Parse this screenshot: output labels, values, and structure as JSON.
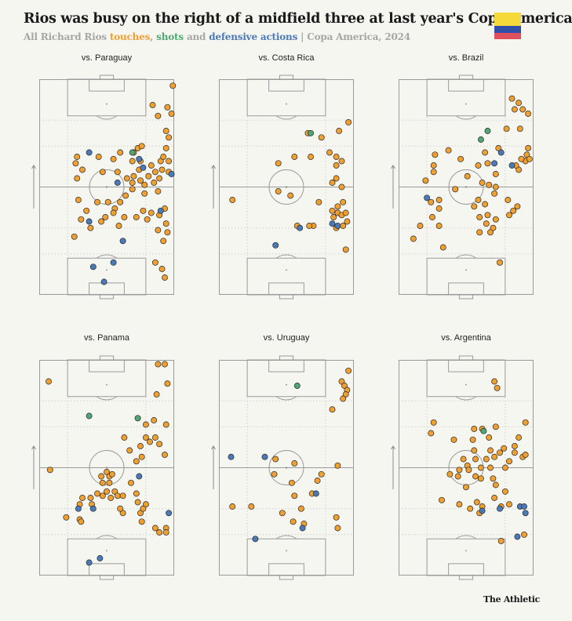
{
  "header": {
    "title": "Rios was busy on the right of a midfield three at last year's Copa America",
    "subtitle_prefix": "All Richard Rios ",
    "subtitle_touches": "touches",
    "subtitle_sep1": ", ",
    "subtitle_shots": "shots",
    "subtitle_and": " and ",
    "subtitle_defensive": "defensive actions",
    "subtitle_suffix": " | Copa America, 2024"
  },
  "branding": {
    "label": "The Athletic"
  },
  "flag": {
    "colors": [
      "#f5d83a",
      "#2f4fa8",
      "#e0505c"
    ]
  },
  "colors": {
    "touch": "#f0a030",
    "shot": "#4fa874",
    "defensive": "#4a7ab8"
  },
  "chart_data": [
    {
      "type": "scatter",
      "title": "vs. Paraguay",
      "x_axis": "pitch width (0 = left touchline, 1 = right touchline)",
      "y_axis": "pitch length (0 = own goal line, 1 = opponent goal line)",
      "touches": [
        [
          0.99,
          0.97
        ],
        [
          0.84,
          0.88
        ],
        [
          0.95,
          0.87
        ],
        [
          0.88,
          0.83
        ],
        [
          0.94,
          0.76
        ],
        [
          0.96,
          0.73
        ],
        [
          0.98,
          0.84
        ],
        [
          0.7,
          0.66
        ],
        [
          0.73,
          0.68
        ],
        [
          0.76,
          0.69
        ],
        [
          0.69,
          0.62
        ],
        [
          0.75,
          0.62
        ],
        [
          0.83,
          0.6
        ],
        [
          0.9,
          0.62
        ],
        [
          0.94,
          0.68
        ],
        [
          0.92,
          0.64
        ],
        [
          0.96,
          0.62
        ],
        [
          0.28,
          0.64
        ],
        [
          0.44,
          0.64
        ],
        [
          0.55,
          0.63
        ],
        [
          0.6,
          0.66
        ],
        [
          0.74,
          0.58
        ],
        [
          0.81,
          0.55
        ],
        [
          0.86,
          0.57
        ],
        [
          0.7,
          0.55
        ],
        [
          0.75,
          0.53
        ],
        [
          0.69,
          0.52
        ],
        [
          0.78,
          0.51
        ],
        [
          0.85,
          0.52
        ],
        [
          0.89,
          0.54
        ],
        [
          0.88,
          0.48
        ],
        [
          0.91,
          0.58
        ],
        [
          0.96,
          0.57
        ],
        [
          0.27,
          0.61
        ],
        [
          0.32,
          0.58
        ],
        [
          0.28,
          0.54
        ],
        [
          0.47,
          0.57
        ],
        [
          0.58,
          0.57
        ],
        [
          0.65,
          0.54
        ],
        [
          0.69,
          0.49
        ],
        [
          0.78,
          0.47
        ],
        [
          0.64,
          0.46
        ],
        [
          0.6,
          0.43
        ],
        [
          0.56,
          0.4
        ],
        [
          0.51,
          0.43
        ],
        [
          0.43,
          0.43
        ],
        [
          0.29,
          0.44
        ],
        [
          0.35,
          0.39
        ],
        [
          0.31,
          0.35
        ],
        [
          0.63,
          0.36
        ],
        [
          0.72,
          0.36
        ],
        [
          0.8,
          0.35
        ],
        [
          0.89,
          0.37
        ],
        [
          0.93,
          0.4
        ],
        [
          0.55,
          0.38
        ],
        [
          0.49,
          0.36
        ],
        [
          0.46,
          0.34
        ],
        [
          0.59,
          0.32
        ],
        [
          0.83,
          0.38
        ],
        [
          0.94,
          0.33
        ],
        [
          0.95,
          0.29
        ],
        [
          0.92,
          0.25
        ],
        [
          0.26,
          0.27
        ],
        [
          0.38,
          0.31
        ],
        [
          0.86,
          0.15
        ],
        [
          0.91,
          0.12
        ],
        [
          0.93,
          0.08
        ],
        [
          0.88,
          0.3
        ],
        [
          0.77,
          0.39
        ]
      ],
      "shots": [
        [
          0.69,
          0.66
        ]
      ],
      "defensive": [
        [
          0.37,
          0.66
        ],
        [
          0.74,
          0.63
        ],
        [
          0.77,
          0.59
        ],
        [
          0.98,
          0.56
        ],
        [
          0.58,
          0.52
        ],
        [
          0.37,
          0.34
        ],
        [
          0.62,
          0.25
        ],
        [
          0.4,
          0.13
        ],
        [
          0.55,
          0.15
        ],
        [
          0.48,
          0.06
        ],
        [
          0.9,
          0.39
        ]
      ]
    },
    {
      "type": "scatter",
      "title": "vs. Costa Rica",
      "x_axis": "pitch width (0 = left touchline, 1 = right touchline)",
      "y_axis": "pitch length (0 = own goal line, 1 = opponent goal line)",
      "touches": [
        [
          0.96,
          0.8
        ],
        [
          0.89,
          0.76
        ],
        [
          0.76,
          0.73
        ],
        [
          0.66,
          0.75
        ],
        [
          0.82,
          0.66
        ],
        [
          0.68,
          0.64
        ],
        [
          0.87,
          0.64
        ],
        [
          0.91,
          0.62
        ],
        [
          0.87,
          0.6
        ],
        [
          0.44,
          0.61
        ],
        [
          0.87,
          0.54
        ],
        [
          0.84,
          0.52
        ],
        [
          0.91,
          0.5
        ],
        [
          0.44,
          0.48
        ],
        [
          0.53,
          0.46
        ],
        [
          0.56,
          0.64
        ],
        [
          0.1,
          0.44
        ],
        [
          0.74,
          0.43
        ],
        [
          0.88,
          0.41
        ],
        [
          0.92,
          0.43
        ],
        [
          0.84,
          0.39
        ],
        [
          0.88,
          0.38
        ],
        [
          0.91,
          0.37
        ],
        [
          0.94,
          0.38
        ],
        [
          0.85,
          0.36
        ],
        [
          0.7,
          0.32
        ],
        [
          0.67,
          0.32
        ],
        [
          0.87,
          0.31
        ],
        [
          0.92,
          0.32
        ],
        [
          0.95,
          0.34
        ],
        [
          0.94,
          0.21
        ],
        [
          0.58,
          0.32
        ]
      ],
      "shots": [
        [
          0.68,
          0.75
        ]
      ],
      "defensive": [
        [
          0.84,
          0.33
        ],
        [
          0.88,
          0.32
        ],
        [
          0.42,
          0.23
        ],
        [
          0.6,
          0.31
        ]
      ]
    },
    {
      "type": "scatter",
      "title": "vs. Brazil",
      "x_axis": "pitch width (0 = left touchline, 1 = right touchline)",
      "y_axis": "pitch length (0 = own goal line, 1 = opponent goal line)",
      "touches": [
        [
          0.84,
          0.91
        ],
        [
          0.89,
          0.89
        ],
        [
          0.86,
          0.86
        ],
        [
          0.92,
          0.86
        ],
        [
          0.96,
          0.84
        ],
        [
          0.8,
          0.77
        ],
        [
          0.9,
          0.77
        ],
        [
          0.74,
          0.68
        ],
        [
          0.94,
          0.62
        ],
        [
          0.95,
          0.65
        ],
        [
          0.91,
          0.63
        ],
        [
          0.89,
          0.58
        ],
        [
          0.87,
          0.6
        ],
        [
          0.96,
          0.68
        ],
        [
          0.97,
          0.63
        ],
        [
          0.37,
          0.67
        ],
        [
          0.27,
          0.65
        ],
        [
          0.26,
          0.6
        ],
        [
          0.46,
          0.63
        ],
        [
          0.64,
          0.66
        ],
        [
          0.66,
          0.61
        ],
        [
          0.51,
          0.55
        ],
        [
          0.72,
          0.56
        ],
        [
          0.59,
          0.6
        ],
        [
          0.26,
          0.57
        ],
        [
          0.2,
          0.53
        ],
        [
          0.42,
          0.49
        ],
        [
          0.62,
          0.52
        ],
        [
          0.67,
          0.51
        ],
        [
          0.72,
          0.5
        ],
        [
          0.71,
          0.47
        ],
        [
          0.59,
          0.44
        ],
        [
          0.3,
          0.44
        ],
        [
          0.24,
          0.43
        ],
        [
          0.3,
          0.4
        ],
        [
          0.56,
          0.41
        ],
        [
          0.64,
          0.42
        ],
        [
          0.81,
          0.44
        ],
        [
          0.82,
          0.37
        ],
        [
          0.85,
          0.39
        ],
        [
          0.88,
          0.41
        ],
        [
          0.66,
          0.37
        ],
        [
          0.25,
          0.36
        ],
        [
          0.3,
          0.32
        ],
        [
          0.16,
          0.32
        ],
        [
          0.72,
          0.35
        ],
        [
          0.65,
          0.33
        ],
        [
          0.6,
          0.36
        ],
        [
          0.7,
          0.31
        ],
        [
          0.68,
          0.29
        ],
        [
          0.6,
          0.29
        ],
        [
          0.11,
          0.26
        ],
        [
          0.33,
          0.22
        ],
        [
          0.75,
          0.15
        ]
      ],
      "shots": [
        [
          0.66,
          0.76
        ],
        [
          0.61,
          0.72
        ]
      ],
      "defensive": [
        [
          0.76,
          0.66
        ],
        [
          0.71,
          0.61
        ],
        [
          0.84,
          0.6
        ],
        [
          0.21,
          0.45
        ]
      ]
    },
    {
      "type": "scatter",
      "title": "vs. Panama",
      "x_axis": "pitch width (0 = left touchline, 1 = right touchline)",
      "y_axis": "pitch length (0 = own goal line, 1 = opponent goal line)",
      "touches": [
        [
          0.88,
          0.98
        ],
        [
          0.93,
          0.98
        ],
        [
          0.95,
          0.89
        ],
        [
          0.87,
          0.84
        ],
        [
          0.07,
          0.9
        ],
        [
          0.85,
          0.72
        ],
        [
          0.94,
          0.7
        ],
        [
          0.79,
          0.7
        ],
        [
          0.79,
          0.64
        ],
        [
          0.86,
          0.64
        ],
        [
          0.82,
          0.62
        ],
        [
          0.89,
          0.61
        ],
        [
          0.75,
          0.6
        ],
        [
          0.63,
          0.64
        ],
        [
          0.67,
          0.58
        ],
        [
          0.76,
          0.55
        ],
        [
          0.93,
          0.56
        ],
        [
          0.72,
          0.53
        ],
        [
          0.08,
          0.49
        ],
        [
          0.5,
          0.48
        ],
        [
          0.52,
          0.46
        ],
        [
          0.54,
          0.47
        ],
        [
          0.46,
          0.46
        ],
        [
          0.52,
          0.43
        ],
        [
          0.47,
          0.43
        ],
        [
          0.5,
          0.39
        ],
        [
          0.56,
          0.39
        ],
        [
          0.43,
          0.38
        ],
        [
          0.47,
          0.37
        ],
        [
          0.53,
          0.36
        ],
        [
          0.58,
          0.37
        ],
        [
          0.68,
          0.43
        ],
        [
          0.72,
          0.38
        ],
        [
          0.73,
          0.34
        ],
        [
          0.62,
          0.37
        ],
        [
          0.38,
          0.36
        ],
        [
          0.32,
          0.36
        ],
        [
          0.39,
          0.33
        ],
        [
          0.3,
          0.33
        ],
        [
          0.62,
          0.29
        ],
        [
          0.75,
          0.29
        ],
        [
          0.79,
          0.33
        ],
        [
          0.77,
          0.31
        ],
        [
          0.76,
          0.25
        ],
        [
          0.2,
          0.27
        ],
        [
          0.3,
          0.26
        ],
        [
          0.31,
          0.25
        ],
        [
          0.86,
          0.22
        ],
        [
          0.89,
          0.2
        ],
        [
          0.94,
          0.22
        ],
        [
          0.94,
          0.2
        ],
        [
          0.6,
          0.31
        ]
      ],
      "shots": [
        [
          0.37,
          0.74
        ],
        [
          0.73,
          0.73
        ]
      ],
      "defensive": [
        [
          0.74,
          0.46
        ],
        [
          0.29,
          0.31
        ],
        [
          0.4,
          0.31
        ],
        [
          0.96,
          0.29
        ],
        [
          0.45,
          0.08
        ],
        [
          0.37,
          0.06
        ]
      ]
    },
    {
      "type": "scatter",
      "title": "vs. Uruguay",
      "x_axis": "pitch width (0 = left touchline, 1 = right touchline)",
      "y_axis": "pitch length (0 = own goal line, 1 = opponent goal line)",
      "touches": [
        [
          0.96,
          0.95
        ],
        [
          0.91,
          0.9
        ],
        [
          0.93,
          0.88
        ],
        [
          0.95,
          0.86
        ],
        [
          0.94,
          0.84
        ],
        [
          0.92,
          0.82
        ],
        [
          0.84,
          0.77
        ],
        [
          0.56,
          0.52
        ],
        [
          0.88,
          0.51
        ],
        [
          0.41,
          0.47
        ],
        [
          0.76,
          0.47
        ],
        [
          0.54,
          0.43
        ],
        [
          0.73,
          0.44
        ],
        [
          0.56,
          0.37
        ],
        [
          0.69,
          0.38
        ],
        [
          0.1,
          0.32
        ],
        [
          0.24,
          0.32
        ],
        [
          0.47,
          0.29
        ],
        [
          0.61,
          0.31
        ],
        [
          0.55,
          0.25
        ],
        [
          0.63,
          0.24
        ],
        [
          0.87,
          0.27
        ],
        [
          0.88,
          0.22
        ],
        [
          0.42,
          0.54
        ]
      ],
      "shots": [
        [
          0.58,
          0.88
        ]
      ],
      "defensive": [
        [
          0.09,
          0.55
        ],
        [
          0.34,
          0.55
        ],
        [
          0.72,
          0.38
        ],
        [
          0.62,
          0.22
        ],
        [
          0.27,
          0.17
        ]
      ]
    },
    {
      "type": "scatter",
      "title": "vs. Argentina",
      "x_axis": "pitch width (0 = left touchline, 1 = right touchline)",
      "y_axis": "pitch length (0 = own goal line, 1 = opponent goal line)",
      "touches": [
        [
          0.71,
          0.9
        ],
        [
          0.73,
          0.87
        ],
        [
          0.26,
          0.71
        ],
        [
          0.94,
          0.71
        ],
        [
          0.72,
          0.69
        ],
        [
          0.62,
          0.68
        ],
        [
          0.56,
          0.68
        ],
        [
          0.24,
          0.66
        ],
        [
          0.41,
          0.63
        ],
        [
          0.55,
          0.63
        ],
        [
          0.67,
          0.64
        ],
        [
          0.89,
          0.64
        ],
        [
          0.56,
          0.58
        ],
        [
          0.68,
          0.58
        ],
        [
          0.75,
          0.57
        ],
        [
          0.78,
          0.59
        ],
        [
          0.86,
          0.6
        ],
        [
          0.86,
          0.57
        ],
        [
          0.92,
          0.55
        ],
        [
          0.94,
          0.56
        ],
        [
          0.48,
          0.54
        ],
        [
          0.57,
          0.54
        ],
        [
          0.65,
          0.54
        ],
        [
          0.71,
          0.55
        ],
        [
          0.82,
          0.53
        ],
        [
          0.51,
          0.51
        ],
        [
          0.61,
          0.5
        ],
        [
          0.68,
          0.5
        ],
        [
          0.45,
          0.49
        ],
        [
          0.52,
          0.49
        ],
        [
          0.79,
          0.5
        ],
        [
          0.38,
          0.47
        ],
        [
          0.44,
          0.46
        ],
        [
          0.57,
          0.46
        ],
        [
          0.61,
          0.45
        ],
        [
          0.7,
          0.45
        ],
        [
          0.72,
          0.42
        ],
        [
          0.5,
          0.41
        ],
        [
          0.79,
          0.39
        ],
        [
          0.71,
          0.36
        ],
        [
          0.58,
          0.34
        ],
        [
          0.32,
          0.35
        ],
        [
          0.45,
          0.33
        ],
        [
          0.62,
          0.32
        ],
        [
          0.53,
          0.31
        ],
        [
          0.82,
          0.33
        ],
        [
          0.76,
          0.32
        ],
        [
          0.6,
          0.29
        ],
        [
          0.93,
          0.19
        ],
        [
          0.76,
          0.16
        ]
      ],
      "shots": [
        [
          0.63,
          0.67
        ]
      ],
      "defensive": [
        [
          0.62,
          0.3
        ],
        [
          0.75,
          0.31
        ],
        [
          0.9,
          0.32
        ],
        [
          0.93,
          0.32
        ],
        [
          0.94,
          0.29
        ],
        [
          0.88,
          0.18
        ]
      ]
    }
  ]
}
